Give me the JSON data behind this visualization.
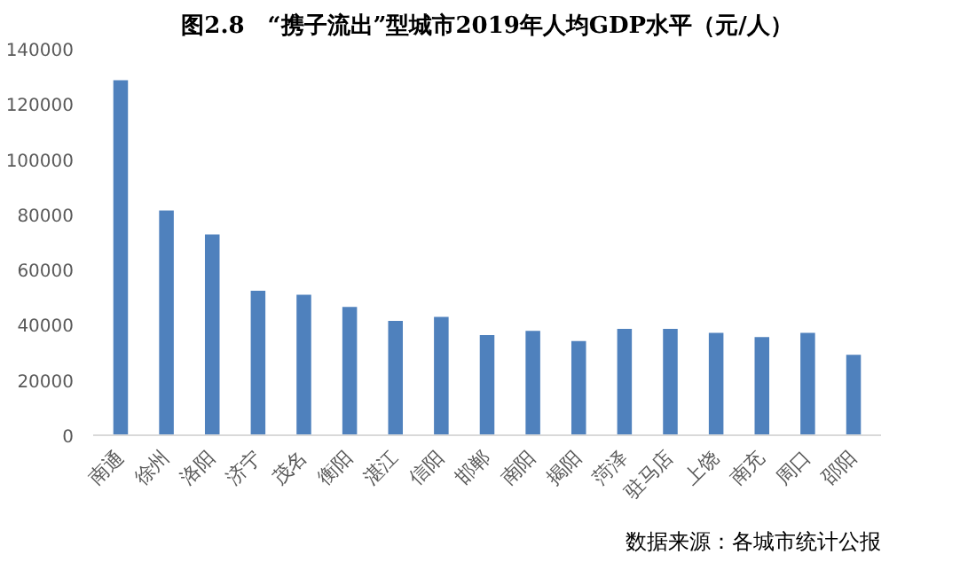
{
  "chart_data": {
    "type": "bar",
    "title": "图2.8　“携子流出”型城市2019年人均GDP水平（元/人）",
    "categories": [
      "南通",
      "徐州",
      "洛阳",
      "济宁",
      "茂名",
      "衡阳",
      "湛江",
      "信阳",
      "邯郸",
      "南阳",
      "揭阳",
      "菏泽",
      "驻马店",
      "上饶",
      "南充",
      "周口",
      "邵阳"
    ],
    "values": [
      128600,
      81400,
      72700,
      52300,
      50900,
      46500,
      41400,
      42900,
      36300,
      37800,
      34100,
      38500,
      38500,
      37100,
      35600,
      37100,
      29100
    ],
    "color": "#4f81bd",
    "ylim": [
      0,
      140000
    ],
    "yticks": [
      0,
      20000,
      40000,
      60000,
      80000,
      100000,
      120000,
      140000
    ],
    "grid": false,
    "annotations": [
      "数据来源：各城市统计公报"
    ]
  }
}
